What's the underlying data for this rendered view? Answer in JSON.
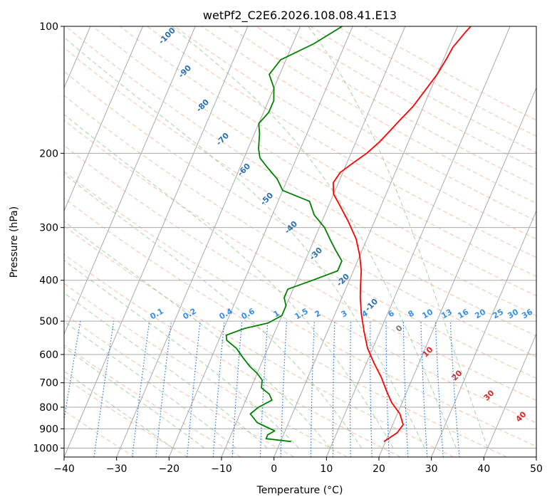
{
  "chart_data": {
    "type": "line",
    "title": "wetPf2_C2E6.2026.108.08.41.E13",
    "xlabel": "Temperature (°C)",
    "ylabel": "Pressure (hPa)",
    "xlim": [
      -40,
      50
    ],
    "ylim": [
      1050,
      100
    ],
    "y_scale": "log",
    "skew": 35,
    "grid": true,
    "x_ticks": [
      -40,
      -30,
      -20,
      -10,
      0,
      10,
      20,
      30,
      40,
      50
    ],
    "y_ticks": [
      100,
      200,
      300,
      400,
      500,
      600,
      700,
      800,
      900,
      1000
    ],
    "series": [
      {
        "color": "#ff0000",
        "points": [
          [
            19.7,
            965
          ],
          [
            21.5,
            920
          ],
          [
            22,
            880
          ],
          [
            20.5,
            830
          ],
          [
            18,
            780
          ],
          [
            16,
            730
          ],
          [
            14,
            680
          ],
          [
            11.5,
            630
          ],
          [
            9,
            580
          ],
          [
            7,
            530
          ],
          [
            5,
            480
          ],
          [
            3.5,
            440
          ],
          [
            2.5,
            410
          ],
          [
            1.5,
            380
          ],
          [
            0,
            350
          ],
          [
            -2,
            320
          ],
          [
            -5,
            290
          ],
          [
            -8,
            265
          ],
          [
            -10,
            250
          ],
          [
            -11,
            235
          ],
          [
            -10.5,
            222
          ],
          [
            -9,
            212
          ],
          [
            -7,
            200
          ],
          [
            -5.5,
            188
          ],
          [
            -4.5,
            178
          ],
          [
            -3.5,
            168
          ],
          [
            -2,
            155
          ],
          [
            -1,
            142
          ],
          [
            0,
            130
          ],
          [
            0.5,
            120
          ],
          [
            0.8,
            112
          ],
          [
            2,
            103
          ],
          [
            2.5,
            100
          ]
        ]
      },
      {
        "color": "#008000",
        "points": [
          [
            2,
            965
          ],
          [
            -3,
            950
          ],
          [
            -3,
            930
          ],
          [
            -2,
            910
          ],
          [
            -4,
            890
          ],
          [
            -6,
            870
          ],
          [
            -8,
            830
          ],
          [
            -7,
            800
          ],
          [
            -5,
            770
          ],
          [
            -6,
            745
          ],
          [
            -8,
            720
          ],
          [
            -8.5,
            690
          ],
          [
            -10,
            665
          ],
          [
            -12,
            640
          ],
          [
            -14,
            610
          ],
          [
            -16,
            580
          ],
          [
            -18.5,
            555
          ],
          [
            -19,
            540
          ],
          [
            -16,
            520
          ],
          [
            -12,
            505
          ],
          [
            -10,
            485
          ],
          [
            -10,
            460
          ],
          [
            -11,
            440
          ],
          [
            -11,
            420
          ],
          [
            -7,
            400
          ],
          [
            -3,
            380
          ],
          [
            -3,
            360
          ],
          [
            -5,
            340
          ],
          [
            -7,
            320
          ],
          [
            -9,
            300
          ],
          [
            -12,
            280
          ],
          [
            -14,
            260
          ],
          [
            -20,
            245
          ],
          [
            -22,
            230
          ],
          [
            -25,
            215
          ],
          [
            -27,
            205
          ],
          [
            -28,
            195
          ],
          [
            -29,
            180
          ],
          [
            -30,
            170
          ],
          [
            -29,
            160
          ],
          [
            -29,
            150
          ],
          [
            -30,
            140
          ],
          [
            -32,
            130
          ],
          [
            -31,
            120
          ],
          [
            -26,
            110
          ],
          [
            -22,
            100
          ]
        ]
      }
    ],
    "dry_adiabat_labels": [
      "-100",
      "-90",
      "-80",
      "-70",
      "-60",
      "-50",
      "-40",
      "-30",
      "-20",
      "-10",
      "0",
      "10",
      "20",
      "30",
      "40"
    ],
    "mixing_ratio_labels": [
      "0.1",
      "0.2",
      "0.4",
      "0.6",
      "1",
      "1.5",
      "2",
      "3",
      "4",
      "6",
      "8",
      "10",
      "13",
      "16",
      "20",
      "25",
      "30",
      "36"
    ],
    "colors": {
      "temperature": "#ff0000",
      "dewpoint": "#008000",
      "dry_adiabat": "#f4a582",
      "moist_adiabat": "#8fc98f",
      "mixing_ratio": "#1f77e0",
      "isotherm": "#999999",
      "grid": "#aaaaaa"
    }
  }
}
